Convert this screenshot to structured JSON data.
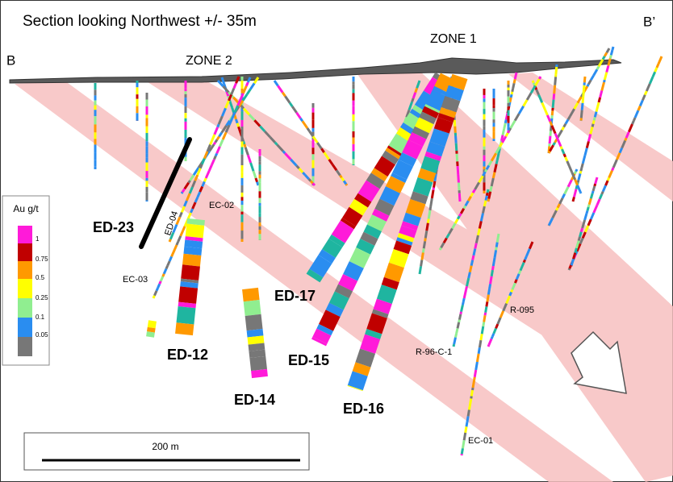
{
  "title": "Section looking Northwest +/- 35m",
  "section_ends": [
    "B",
    "B’"
  ],
  "zones": [
    "ZONE 1",
    "ZONE 2"
  ],
  "major_holes": [
    "ED-23",
    "ED-12",
    "ED-14",
    "ED-17",
    "ED-15",
    "ED-16"
  ],
  "minor_holes": [
    "ED-04",
    "EC-02",
    "EC-03",
    "R-96-C-1",
    "R-095",
    "EC-01"
  ],
  "legend": {
    "title": "Au g/t",
    "labels": [
      "1",
      "0.75",
      "0.5",
      "0.25",
      "0.1",
      "0.05"
    ]
  },
  "scale_bar": "200 m"
}
